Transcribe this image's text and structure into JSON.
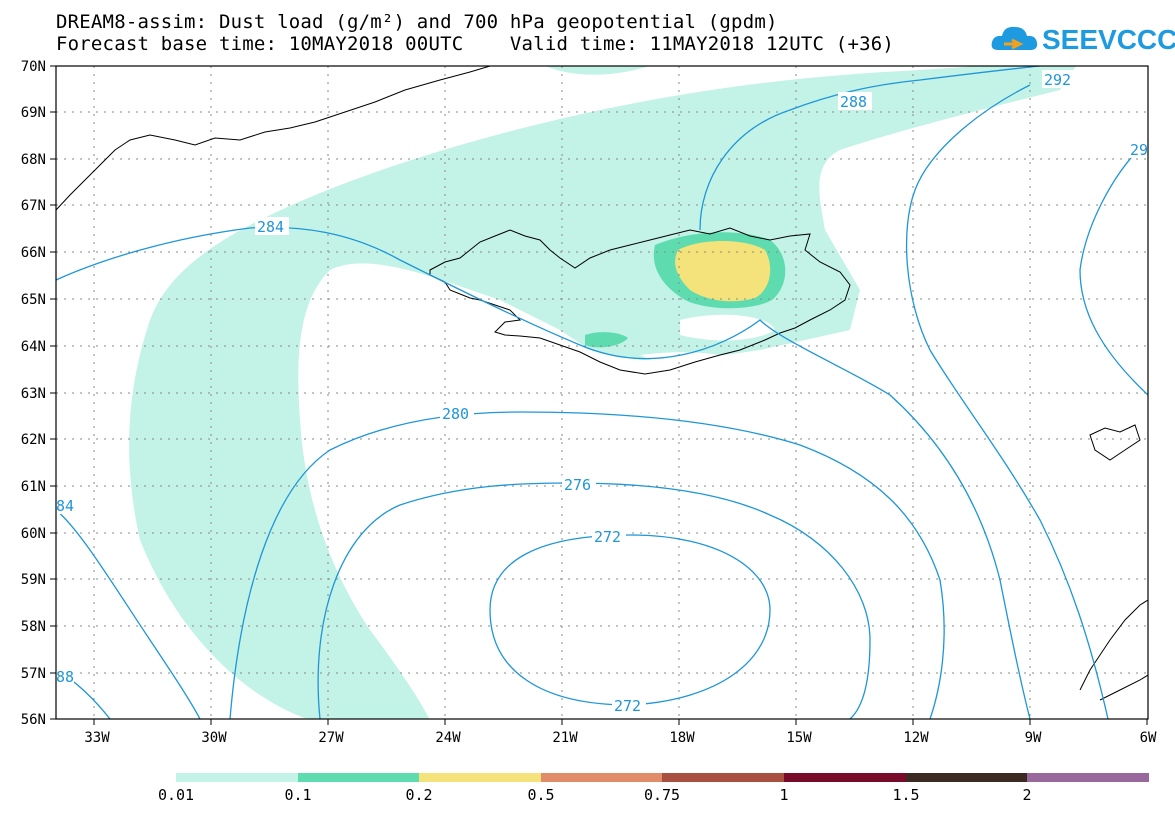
{
  "header": {
    "title_line1": "DREAM8-assim: Dust load (g/m²) and 700 hPa geopotential (gpdm)",
    "title_line2": "Forecast base time: 10MAY2018 00UTC    Valid time: 11MAY2018 12UTC (+36)"
  },
  "logo": {
    "text": "SEEVCCC",
    "icon": "cloud-icon",
    "color": "#1e9be0"
  },
  "map": {
    "lat_labels": [
      "70N",
      "69N",
      "68N",
      "67N",
      "66N",
      "65N",
      "64N",
      "63N",
      "62N",
      "61N",
      "60N",
      "59N",
      "58N",
      "57N",
      "56N"
    ],
    "lon_labels": [
      "33W",
      "30W",
      "27W",
      "24W",
      "21W",
      "18W",
      "15W",
      "12W",
      "9W",
      "6W"
    ],
    "contour_labels": [
      "288",
      "292",
      "29",
      "284",
      "280",
      "276",
      "272",
      "272",
      "84",
      "88"
    ],
    "contour_color": "#1e96d8",
    "coast_color": "#000000"
  },
  "colorbar": {
    "colors": [
      "#c3f2e6",
      "#5edcb0",
      "#f4e27a",
      "#e08c68",
      "#a85040",
      "#780a2a",
      "#3c2a22",
      "#98689c"
    ],
    "labels": [
      "0.01",
      "0.1",
      "0.2",
      "0.5",
      "0.75",
      "1",
      "1.5",
      "2"
    ]
  }
}
